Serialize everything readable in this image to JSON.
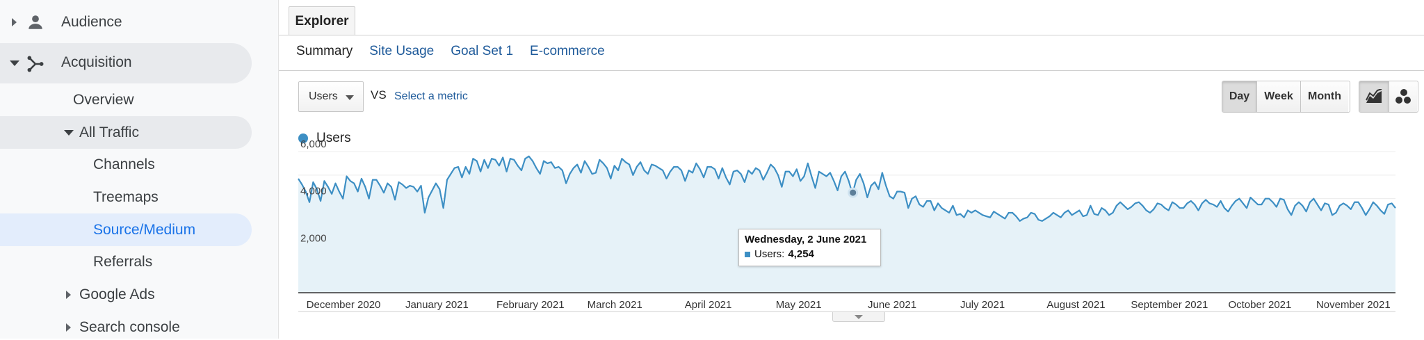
{
  "sidebar": {
    "items": [
      {
        "label": "Audience",
        "icon": "person-icon"
      },
      {
        "label": "Acquisition",
        "icon": "acquisition-icon"
      },
      {
        "label": "Overview"
      },
      {
        "label": "All Traffic"
      },
      {
        "label": "Channels"
      },
      {
        "label": "Treemaps"
      },
      {
        "label": "Source/Medium"
      },
      {
        "label": "Referrals"
      },
      {
        "label": "Google Ads"
      },
      {
        "label": "Search console"
      }
    ]
  },
  "explorer": {
    "tab_label": "Explorer",
    "subtabs": [
      "Summary",
      "Site Usage",
      "Goal Set 1",
      "E-commerce"
    ],
    "selected_subtab": "Summary"
  },
  "controls": {
    "metric": "Users",
    "vs": "VS",
    "select_metric": "Select a metric",
    "granularity": [
      "Day",
      "Week",
      "Month"
    ],
    "selected_granularity": "Day",
    "chart_modes": [
      "line-chart-icon",
      "motion-chart-icon"
    ]
  },
  "colors": {
    "series": "#3d8fc4",
    "fill": "#e6f2f8",
    "link": "#1e5a9a",
    "active_nav": "#1a73e8"
  },
  "chart_data": {
    "type": "area",
    "series": [
      {
        "name": "Users",
        "values": [
          4850,
          4600,
          4300,
          3850,
          4700,
          4400,
          3900,
          4750,
          4500,
          4200,
          4650,
          4300,
          4000,
          4950,
          4750,
          4650,
          4300,
          4850,
          4500,
          4000,
          4800,
          4800,
          4550,
          4250,
          4650,
          4500,
          3950,
          4700,
          4600,
          4450,
          4550,
          4500,
          4300,
          4550,
          3400,
          4050,
          4350,
          4650,
          4400,
          3600,
          4800,
          5050,
          5300,
          5350,
          4900,
          5350,
          5050,
          5700,
          5600,
          5150,
          5650,
          5300,
          5700,
          5650,
          5400,
          5750,
          5150,
          5700,
          5650,
          5400,
          5200,
          5700,
          5800,
          5600,
          5300,
          5050,
          5600,
          5500,
          5550,
          5300,
          5350,
          5200,
          4650,
          5050,
          5300,
          5450,
          5100,
          5600,
          5350,
          5050,
          5100,
          5650,
          5500,
          5300,
          4850,
          5400,
          5200,
          5700,
          5550,
          5450,
          5000,
          5350,
          5550,
          5200,
          5050,
          5450,
          5400,
          5300,
          5200,
          4850,
          5150,
          5350,
          5350,
          5200,
          4750,
          5200,
          5100,
          5500,
          5250,
          4900,
          5350,
          5350,
          5250,
          4850,
          5300,
          4900,
          4600,
          5150,
          5200,
          5050,
          4700,
          5200,
          5050,
          5300,
          5200,
          4800,
          5100,
          5450,
          5300,
          5000,
          4500,
          5150,
          5150,
          4950,
          5250,
          4750,
          4950,
          5500,
          4950,
          4450,
          5150,
          5050,
          4950,
          5100,
          4750,
          4350,
          4950,
          5150,
          4750,
          4200,
          4800,
          5050,
          4650,
          4050,
          4550,
          4700,
          4400,
          5100,
          4550,
          4100,
          4000,
          4300,
          4300,
          4254,
          3600,
          4000,
          4100,
          3750,
          3650,
          3900,
          3900,
          3500,
          3800,
          3600,
          3500,
          3400,
          3700,
          3300,
          3350,
          3200,
          3500,
          3400,
          3500,
          3400,
          3300,
          3250,
          3200,
          3450,
          3350,
          3250,
          3150,
          3400,
          3400,
          3250,
          3050,
          3150,
          3200,
          3400,
          3350,
          3100,
          3050,
          3150,
          3250,
          3400,
          3300,
          3200,
          3400,
          3500,
          3300,
          3400,
          3500,
          3250,
          3300,
          3700,
          3350,
          3300,
          3600,
          3500,
          3300,
          3400,
          3700,
          3850,
          3700,
          3550,
          3650,
          3800,
          3850,
          3700,
          3500,
          3400,
          3550,
          3800,
          3750,
          3600,
          3500,
          3850,
          3750,
          3600,
          3600,
          3800,
          3900,
          3750,
          3500,
          3800,
          3950,
          3800,
          3750,
          3650,
          3900,
          3600,
          3450,
          3700,
          3900,
          4000,
          3800,
          3600,
          4050,
          3900,
          3750,
          3750,
          4000,
          4000,
          3850,
          3650,
          4000,
          3950,
          3550,
          3300,
          3700,
          3850,
          3700,
          3450,
          3850,
          4000,
          3750,
          3500,
          3800,
          3750,
          3300,
          3400,
          3700,
          3800,
          3700,
          3550,
          3850,
          3850,
          3600,
          3300,
          3550,
          3850,
          3700,
          3500,
          3350,
          3750,
          3800,
          3600
        ]
      }
    ],
    "x_start": "2020-11-30",
    "x_end": "2021-11-29",
    "x_ticks": [
      "December 2020",
      "January 2021",
      "February 2021",
      "March 2021",
      "April 2021",
      "May 2021",
      "June 2021",
      "July 2021",
      "August 2021",
      "September 2021",
      "October 2021",
      "November 2021"
    ],
    "y_ticks": [
      "6,000",
      "4,000",
      "2,000"
    ],
    "ylim": [
      0,
      6000
    ],
    "grid": true,
    "legend": "top-left",
    "highlight": {
      "date": "Wednesday, 2 June 2021",
      "label": "Users:",
      "value": "4,254"
    }
  }
}
